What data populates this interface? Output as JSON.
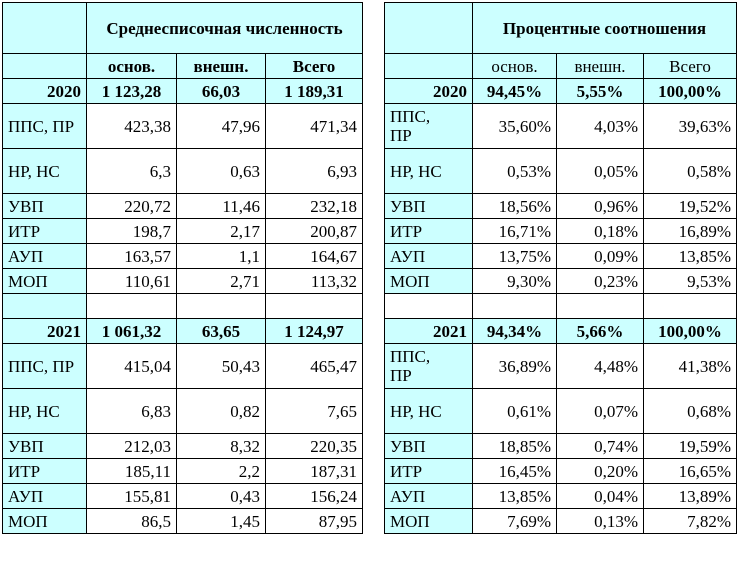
{
  "left": {
    "title": "Среднесписочная численность",
    "cols": [
      "основ.",
      "внешн.",
      "Всего"
    ],
    "blocks": [
      {
        "year": "2020",
        "year_vals": [
          "1 123,28",
          "66,03",
          "1 189,31"
        ],
        "rows": [
          {
            "label": "ППС, ПР",
            "vals": [
              "423,38",
              "47,96",
              "471,34"
            ]
          },
          {
            "label": "НР, НС",
            "vals": [
              "6,3",
              "0,63",
              "6,93"
            ]
          },
          {
            "label": "УВП",
            "vals": [
              "220,72",
              "11,46",
              "232,18"
            ]
          },
          {
            "label": "ИТР",
            "vals": [
              "198,7",
              "2,17",
              "200,87"
            ]
          },
          {
            "label": "АУП",
            "vals": [
              "163,57",
              "1,1",
              "164,67"
            ]
          },
          {
            "label": "МОП",
            "vals": [
              "110,61",
              "2,71",
              "113,32"
            ]
          }
        ]
      },
      {
        "year": "2021",
        "year_vals": [
          "1 061,32",
          "63,65",
          "1 124,97"
        ],
        "rows": [
          {
            "label": "ППС, ПР",
            "vals": [
              "415,04",
              "50,43",
              "465,47"
            ]
          },
          {
            "label": "НР, НС",
            "vals": [
              "6,83",
              "0,82",
              "7,65"
            ]
          },
          {
            "label": "УВП",
            "vals": [
              "212,03",
              "8,32",
              "220,35"
            ]
          },
          {
            "label": "ИТР",
            "vals": [
              "185,11",
              "2,2",
              "187,31"
            ]
          },
          {
            "label": "АУП",
            "vals": [
              "155,81",
              "0,43",
              "156,24"
            ]
          },
          {
            "label": "МОП",
            "vals": [
              "86,5",
              "1,45",
              "87,95"
            ]
          }
        ]
      }
    ]
  },
  "right": {
    "title": "Процентные соотношения",
    "cols": [
      "основ.",
      "внешн.",
      "Всего"
    ],
    "blocks": [
      {
        "year": "2020",
        "year_vals": [
          "94,45%",
          "5,55%",
          "100,00%"
        ],
        "rows": [
          {
            "label": "ППС, ПР",
            "vals": [
              "35,60%",
              "4,03%",
              "39,63%"
            ]
          },
          {
            "label": "НР, НС",
            "vals": [
              "0,53%",
              "0,05%",
              "0,58%"
            ]
          },
          {
            "label": "УВП",
            "vals": [
              "18,56%",
              "0,96%",
              "19,52%"
            ]
          },
          {
            "label": "ИТР",
            "vals": [
              "16,71%",
              "0,18%",
              "16,89%"
            ]
          },
          {
            "label": "АУП",
            "vals": [
              "13,75%",
              "0,09%",
              "13,85%"
            ]
          },
          {
            "label": "МОП",
            "vals": [
              "9,30%",
              "0,23%",
              "9,53%"
            ]
          }
        ]
      },
      {
        "year": "2021",
        "year_vals": [
          "94,34%",
          "5,66%",
          "100,00%"
        ],
        "rows": [
          {
            "label": "ППС, ПР",
            "vals": [
              "36,89%",
              "4,48%",
              "41,38%"
            ]
          },
          {
            "label": "НР, НС",
            "vals": [
              "0,61%",
              "0,07%",
              "0,68%"
            ]
          },
          {
            "label": "УВП",
            "vals": [
              "18,85%",
              "0,74%",
              "19,59%"
            ]
          },
          {
            "label": "ИТР",
            "vals": [
              "16,45%",
              "0,20%",
              "16,65%"
            ]
          },
          {
            "label": "АУП",
            "vals": [
              "13,85%",
              "0,04%",
              "13,89%"
            ]
          },
          {
            "label": "МОП",
            "vals": [
              "7,69%",
              "0,13%",
              "7,82%"
            ]
          }
        ]
      }
    ]
  },
  "colors": {
    "header_bg": "#ccffff",
    "border": "#000000"
  }
}
